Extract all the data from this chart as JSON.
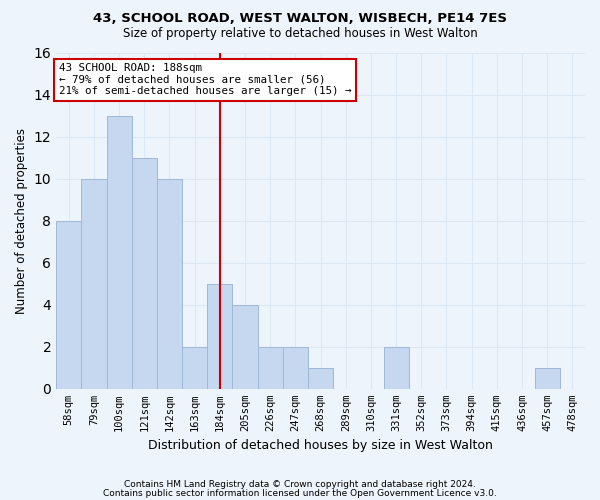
{
  "title1": "43, SCHOOL ROAD, WEST WALTON, WISBECH, PE14 7ES",
  "title2": "Size of property relative to detached houses in West Walton",
  "xlabel": "Distribution of detached houses by size in West Walton",
  "ylabel": "Number of detached properties",
  "categories": [
    "58sqm",
    "79sqm",
    "100sqm",
    "121sqm",
    "142sqm",
    "163sqm",
    "184sqm",
    "205sqm",
    "226sqm",
    "247sqm",
    "268sqm",
    "289sqm",
    "310sqm",
    "331sqm",
    "352sqm",
    "373sqm",
    "394sqm",
    "415sqm",
    "436sqm",
    "457sqm",
    "478sqm"
  ],
  "values": [
    8,
    10,
    13,
    11,
    10,
    2,
    5,
    4,
    2,
    2,
    1,
    0,
    0,
    2,
    0,
    0,
    0,
    0,
    0,
    1,
    0
  ],
  "bar_color": "#c5d8f0",
  "bar_edge_color": "#a0b8d8",
  "vline_x_idx": 6,
  "vline_color": "#cc0000",
  "annotation_line1": "43 SCHOOL ROAD: 188sqm",
  "annotation_line2": "← 79% of detached houses are smaller (56)",
  "annotation_line3": "21% of semi-detached houses are larger (15) →",
  "annotation_box_color": "#ffffff",
  "annotation_box_edge_color": "#cc0000",
  "ylim": [
    0,
    16
  ],
  "yticks": [
    0,
    2,
    4,
    6,
    8,
    10,
    12,
    14,
    16
  ],
  "grid_color": "#dde8f5",
  "background_color": "#eef4fb",
  "footer1": "Contains HM Land Registry data © Crown copyright and database right 2024.",
  "footer2": "Contains public sector information licensed under the Open Government Licence v3.0."
}
